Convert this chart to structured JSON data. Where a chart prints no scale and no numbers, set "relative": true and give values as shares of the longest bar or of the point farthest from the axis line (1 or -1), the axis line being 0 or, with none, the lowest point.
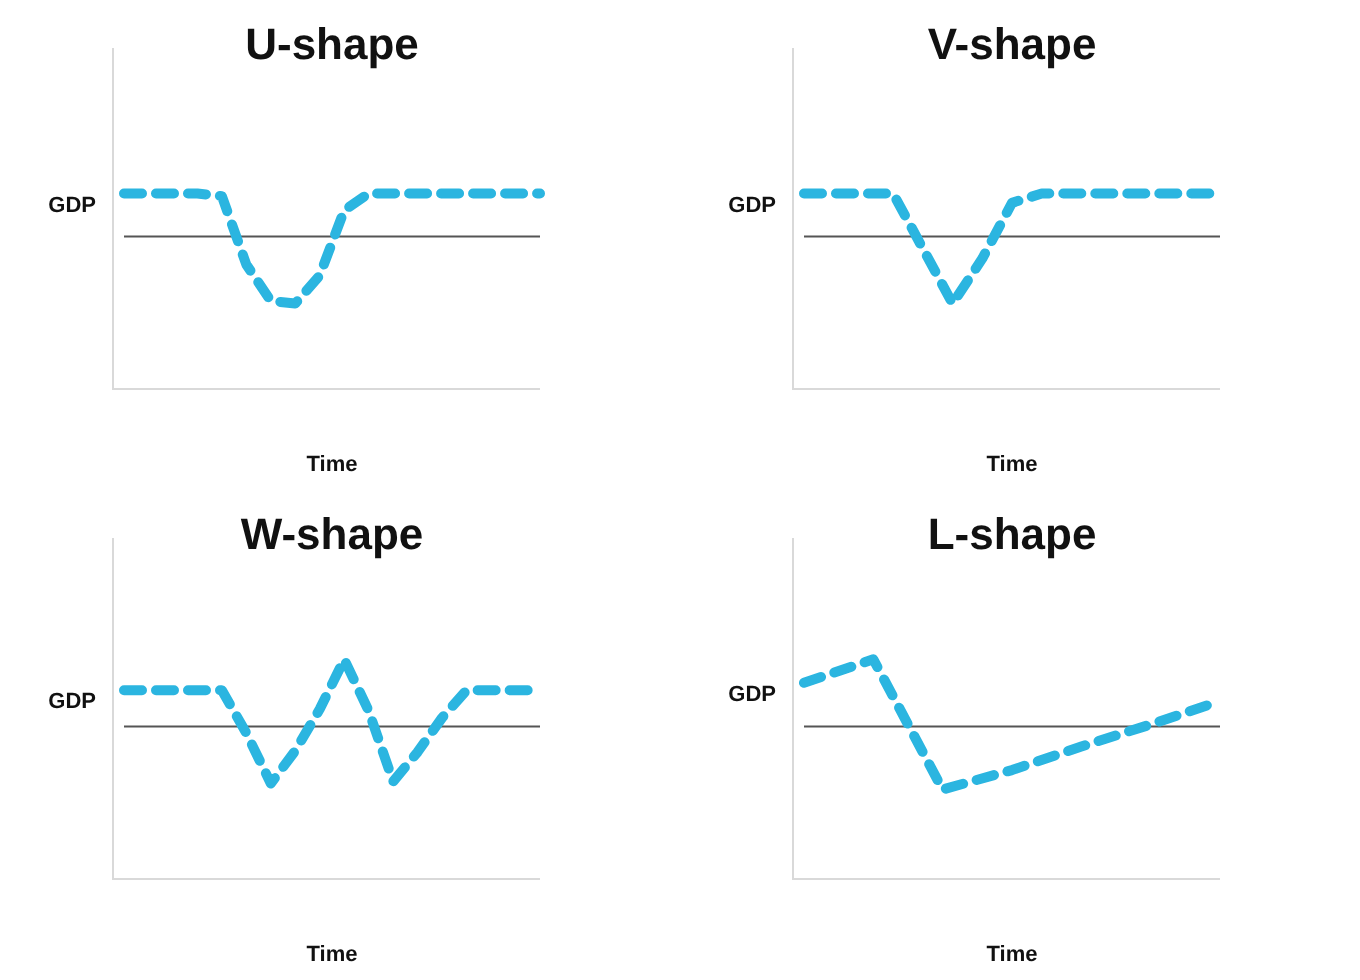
{
  "chart_data": [
    {
      "type": "line",
      "title": "U-shape",
      "xlabel": "Time",
      "ylabel": "GDP",
      "relative": true,
      "line_style": "dashed",
      "marker": "none",
      "categories": [
        null,
        null,
        null,
        null,
        null,
        null,
        null,
        null,
        null,
        null,
        null,
        null,
        null,
        null,
        null,
        null,
        null,
        null
      ],
      "series": [
        {
          "color": "#2bb5e0",
          "values": [
            0.64,
            0.64,
            0.64,
            0.64,
            0.6,
            -0.42,
            -0.96,
            -1,
            -0.58,
            0.39,
            0.64,
            0.64,
            0.64,
            0.64,
            0.64,
            0.64,
            0.64,
            0.64
          ]
        }
      ]
    },
    {
      "type": "line",
      "title": "V-shape",
      "xlabel": "Time",
      "ylabel": "GDP",
      "relative": true,
      "line_style": "dashed",
      "marker": "none",
      "categories": [
        null,
        null,
        null,
        null,
        null,
        null,
        null,
        null,
        null,
        null,
        null,
        null,
        null,
        null,
        null
      ],
      "series": [
        {
          "color": "#2bb5e0",
          "values": [
            0.64,
            0.64,
            0.64,
            0.64,
            -0.18,
            -1,
            -0.33,
            0.5,
            0.64,
            0.64,
            0.64,
            0.64,
            0.64,
            0.64,
            0.64
          ]
        }
      ]
    },
    {
      "type": "line",
      "title": "W-shape",
      "xlabel": "Time",
      "ylabel": "GDP",
      "relative": true,
      "line_style": "dashed",
      "marker": "none",
      "categories": [
        null,
        null,
        null,
        null,
        null,
        null,
        null,
        null,
        null,
        null,
        null,
        null,
        null,
        null,
        null,
        null,
        null,
        null
      ],
      "series": [
        {
          "color": "#2bb5e0",
          "values": [
            0.54,
            0.54,
            0.54,
            0.54,
            0.54,
            -0.1,
            -0.85,
            -0.36,
            0.26,
            1,
            0.23,
            -0.82,
            -0.38,
            0.13,
            0.54,
            0.54,
            0.54,
            0.54
          ]
        }
      ]
    },
    {
      "type": "line",
      "title": "L-shape",
      "xlabel": "Time",
      "ylabel": "GDP",
      "relative": true,
      "line_style": "dashed",
      "marker": "none",
      "categories": [
        null,
        null,
        null,
        null,
        null,
        null,
        null
      ],
      "series": [
        {
          "color": "#2bb5e0",
          "values": [
            0.65,
            1,
            -0.94,
            -0.65,
            -0.3,
            0.03,
            0.38
          ]
        }
      ]
    }
  ]
}
